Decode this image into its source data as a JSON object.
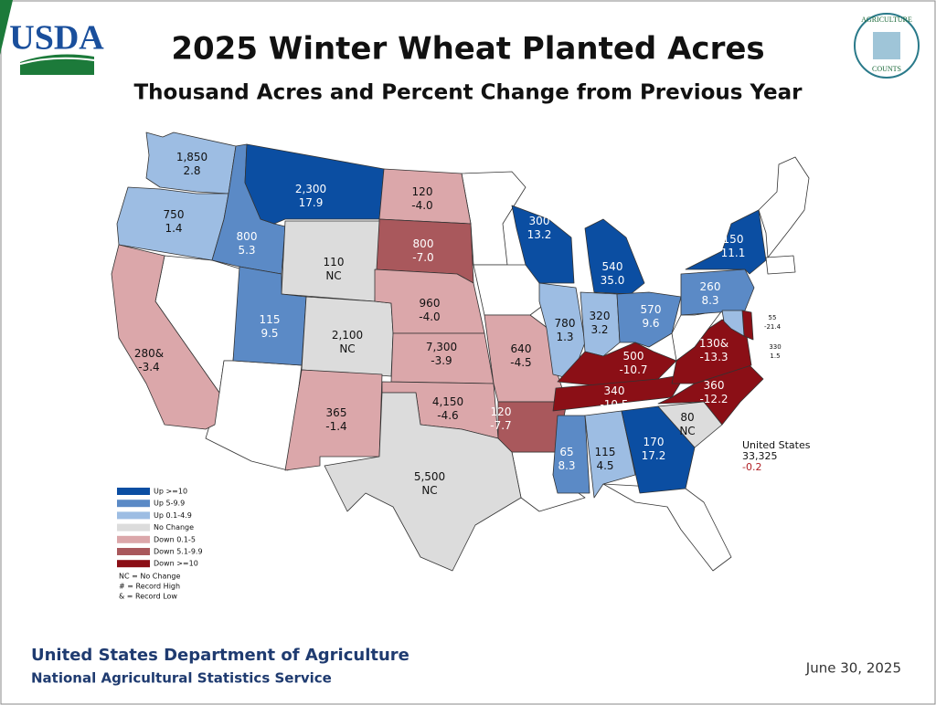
{
  "header": {
    "logo": "USDA",
    "title": "2025 Winter Wheat Planted Acres",
    "subtitle": "Thousand Acres and Percent Change from Previous Year",
    "badge_top": "AGRICULTURE",
    "badge_bottom": "COUNTS"
  },
  "states": [
    {
      "acres": "1,850",
      "change": "2.8",
      "color": "#9dbde3"
    },
    {
      "acres": "750",
      "change": "1.4",
      "color": "#9dbde3"
    },
    {
      "acres": "800",
      "change": "5.3",
      "color": "#5b8ac6"
    },
    {
      "acres": "2,300",
      "change": "17.9",
      "color": "#0b4ea2"
    },
    {
      "acres": "120",
      "change": "-4.0",
      "color": "#dba7aa"
    },
    {
      "acres": "800",
      "change": "-7.0",
      "color": "#a9585c"
    },
    {
      "acres": "110",
      "change": "NC",
      "color": "#dcdcdc"
    },
    {
      "acres": "115",
      "change": "9.5",
      "color": "#5b8ac6"
    },
    {
      "acres": "2,100",
      "change": "NC",
      "color": "#dcdcdc"
    },
    {
      "acres": "280&",
      "change": "-3.4",
      "color": "#dba7aa"
    },
    {
      "acres": "960",
      "change": "-4.0",
      "color": "#dba7aa"
    },
    {
      "acres": "7,300",
      "change": "-3.9",
      "color": "#dba7aa"
    },
    {
      "acres": "365",
      "change": "-1.4",
      "color": "#dba7aa"
    },
    {
      "acres": "4,150",
      "change": "-4.6",
      "color": "#dba7aa"
    },
    {
      "acres": "5,500",
      "change": "NC",
      "color": "#dcdcdc"
    },
    {
      "acres": "640",
      "change": "-4.5",
      "color": "#dba7aa"
    },
    {
      "acres": "120",
      "change": "-7.7",
      "color": "#a9585c"
    },
    {
      "acres": "300",
      "change": "13.2",
      "color": "#0b4ea2"
    },
    {
      "acres": "540",
      "change": "35.0",
      "color": "#0b4ea2"
    },
    {
      "acres": "780",
      "change": "1.3",
      "color": "#9dbde3"
    },
    {
      "acres": "320",
      "change": "3.2",
      "color": "#9dbde3"
    },
    {
      "acres": "570",
      "change": "9.6",
      "color": "#5b8ac6"
    },
    {
      "acres": "500",
      "change": "-10.7",
      "color": "#8b0f16"
    },
    {
      "acres": "340",
      "change": "-10.5",
      "color": "#8b0f16"
    },
    {
      "acres": "65",
      "change": "8.3",
      "color": "#5b8ac6"
    },
    {
      "acres": "115",
      "change": "4.5",
      "color": "#9dbde3"
    },
    {
      "acres": "170",
      "change": "17.2",
      "color": "#0b4ea2"
    },
    {
      "acres": "80",
      "change": "NC",
      "color": "#dcdcdc"
    },
    {
      "acres": "360",
      "change": "-12.2",
      "color": "#8b0f16"
    },
    {
      "acres": "130&",
      "change": "-13.3",
      "color": "#8b0f16"
    },
    {
      "acres": "260",
      "change": "8.3",
      "color": "#5b8ac6"
    },
    {
      "acres": "150",
      "change": "11.1",
      "color": "#0b4ea2"
    },
    {
      "acres": "55",
      "change": "-21.4",
      "color": "#8b0f16"
    },
    {
      "acres": "330",
      "change": "1.5",
      "color": "#9dbde3"
    }
  ],
  "total": {
    "label": "United States",
    "acres": "33,325",
    "change": "-0.2"
  },
  "legend": {
    "items": [
      {
        "label": "Up >=10",
        "color": "#0b4ea2"
      },
      {
        "label": "Up 5-9.9",
        "color": "#5b8ac6"
      },
      {
        "label": "Up 0.1-4.9",
        "color": "#9dbde3"
      },
      {
        "label": "No Change",
        "color": "#dcdcdc"
      },
      {
        "label": "Down 0.1-5",
        "color": "#dba7aa"
      },
      {
        "label": "Down 5.1-9.9",
        "color": "#a9585c"
      },
      {
        "label": "Down >=10",
        "color": "#8b0f16"
      }
    ],
    "notes": [
      "NC = No Change",
      "# = Record High",
      "& = Record Low"
    ]
  },
  "footer": {
    "department": "United States Department of Agriculture",
    "service": "National Agricultural Statistics Service",
    "date": "June 30, 2025"
  }
}
